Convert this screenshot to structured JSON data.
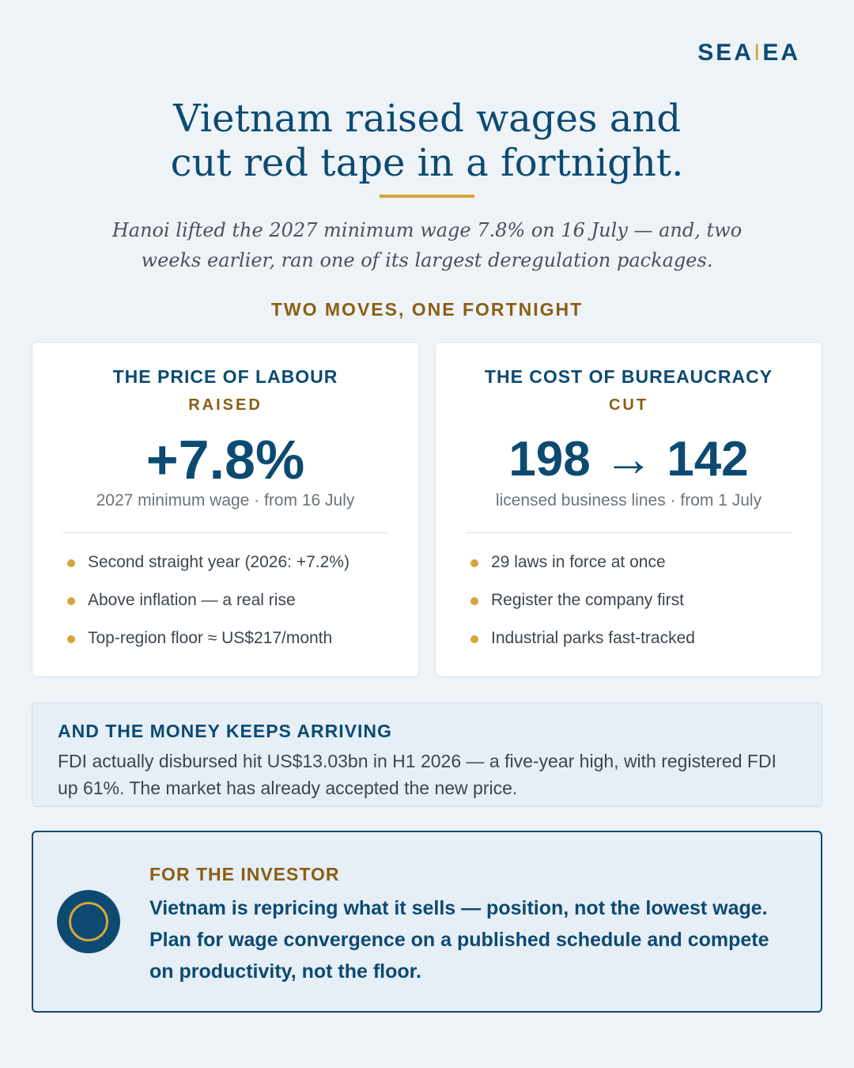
{
  "brand": {
    "name_left": "SEA",
    "separator": "I",
    "name_right": "EA"
  },
  "header": {
    "title_line1": "Vietnam raised wages and",
    "title_line2": "cut red tape in a fortnight.",
    "subtitle": "Hanoi lifted the 2027 minimum wage 7.8% on 16 July — and, two weeks earlier, ran one of its largest deregulation packages."
  },
  "section_label": "TWO MOVES, ONE FORTNIGHT",
  "cards": [
    {
      "heading": "THE PRICE OF LABOUR",
      "tag": "RAISED",
      "figure": "+7.8%",
      "caption": "2027 minimum wage · from 16 July",
      "bullets": [
        "Second straight year (2026: +7.2%)",
        "Above inflation — a real rise",
        "Top-region floor ≈ US$217/month"
      ]
    },
    {
      "heading": "THE COST OF BUREAUCRACY",
      "tag": "CUT",
      "figure": "198 → 142",
      "caption": "licensed business lines · from 1 July",
      "bullets": [
        "29 laws in force at once",
        "Register the company first",
        "Industrial parks fast-tracked"
      ]
    }
  ],
  "money": {
    "heading": "AND THE MONEY KEEPS ARRIVING",
    "body": "FDI actually disbursed hit US$13.03bn in H1 2026 — a five-year high, with registered FDI up 61%. The market has already accepted the new price."
  },
  "investor": {
    "heading": "FOR THE INVESTOR",
    "body": "Vietnam is repricing what it sells — position, not the lowest wage. Plan for wage convergence on a published schedule and compete on productivity, not the floor."
  },
  "colors": {
    "navy": "#0c4a72",
    "gold": "#d4a63a",
    "bronze": "#8a5e14"
  },
  "icons": {
    "bullet": "gold-dot-icon",
    "investor": "ring-circle-icon"
  }
}
